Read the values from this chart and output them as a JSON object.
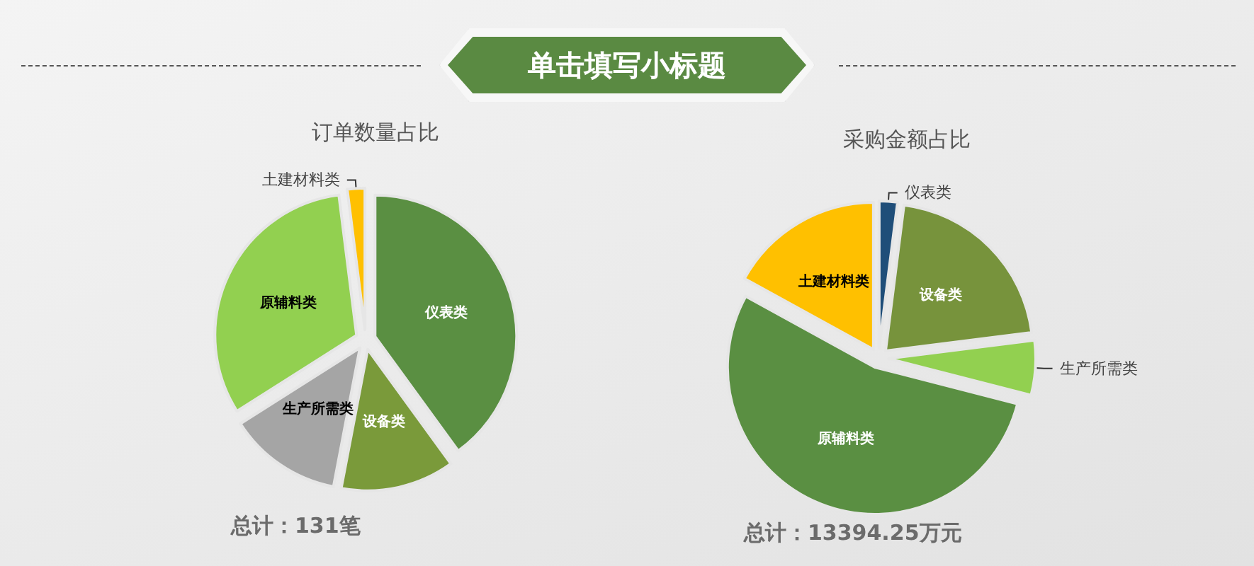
{
  "chart_data": [
    {
      "type": "other",
      "title": "单击填写小标题"
    },
    {
      "type": "pie",
      "title": "订单数量占比",
      "categories": [
        "仪表类",
        "设备类",
        "生产所需类",
        "原辅料类",
        "土建材料类"
      ],
      "values": [
        40,
        13,
        13,
        32,
        2
      ],
      "colors": [
        "#5a8f42",
        "#7a9a3a",
        "#a5a5a5",
        "#92d050",
        "#ffc000"
      ],
      "annotations": [
        "总计：131笔"
      ]
    },
    {
      "type": "pie",
      "title": "采购金额占比",
      "categories": [
        "仪表类",
        "设备类",
        "生产所需类",
        "原辅料类",
        "土建材料类"
      ],
      "values": [
        2,
        21,
        6,
        54,
        17
      ],
      "colors": [
        "#1f4e79",
        "#77933c",
        "#92d050",
        "#5a8f42",
        "#ffc000"
      ],
      "annotations": [
        "总计：13394.25万元"
      ]
    }
  ]
}
